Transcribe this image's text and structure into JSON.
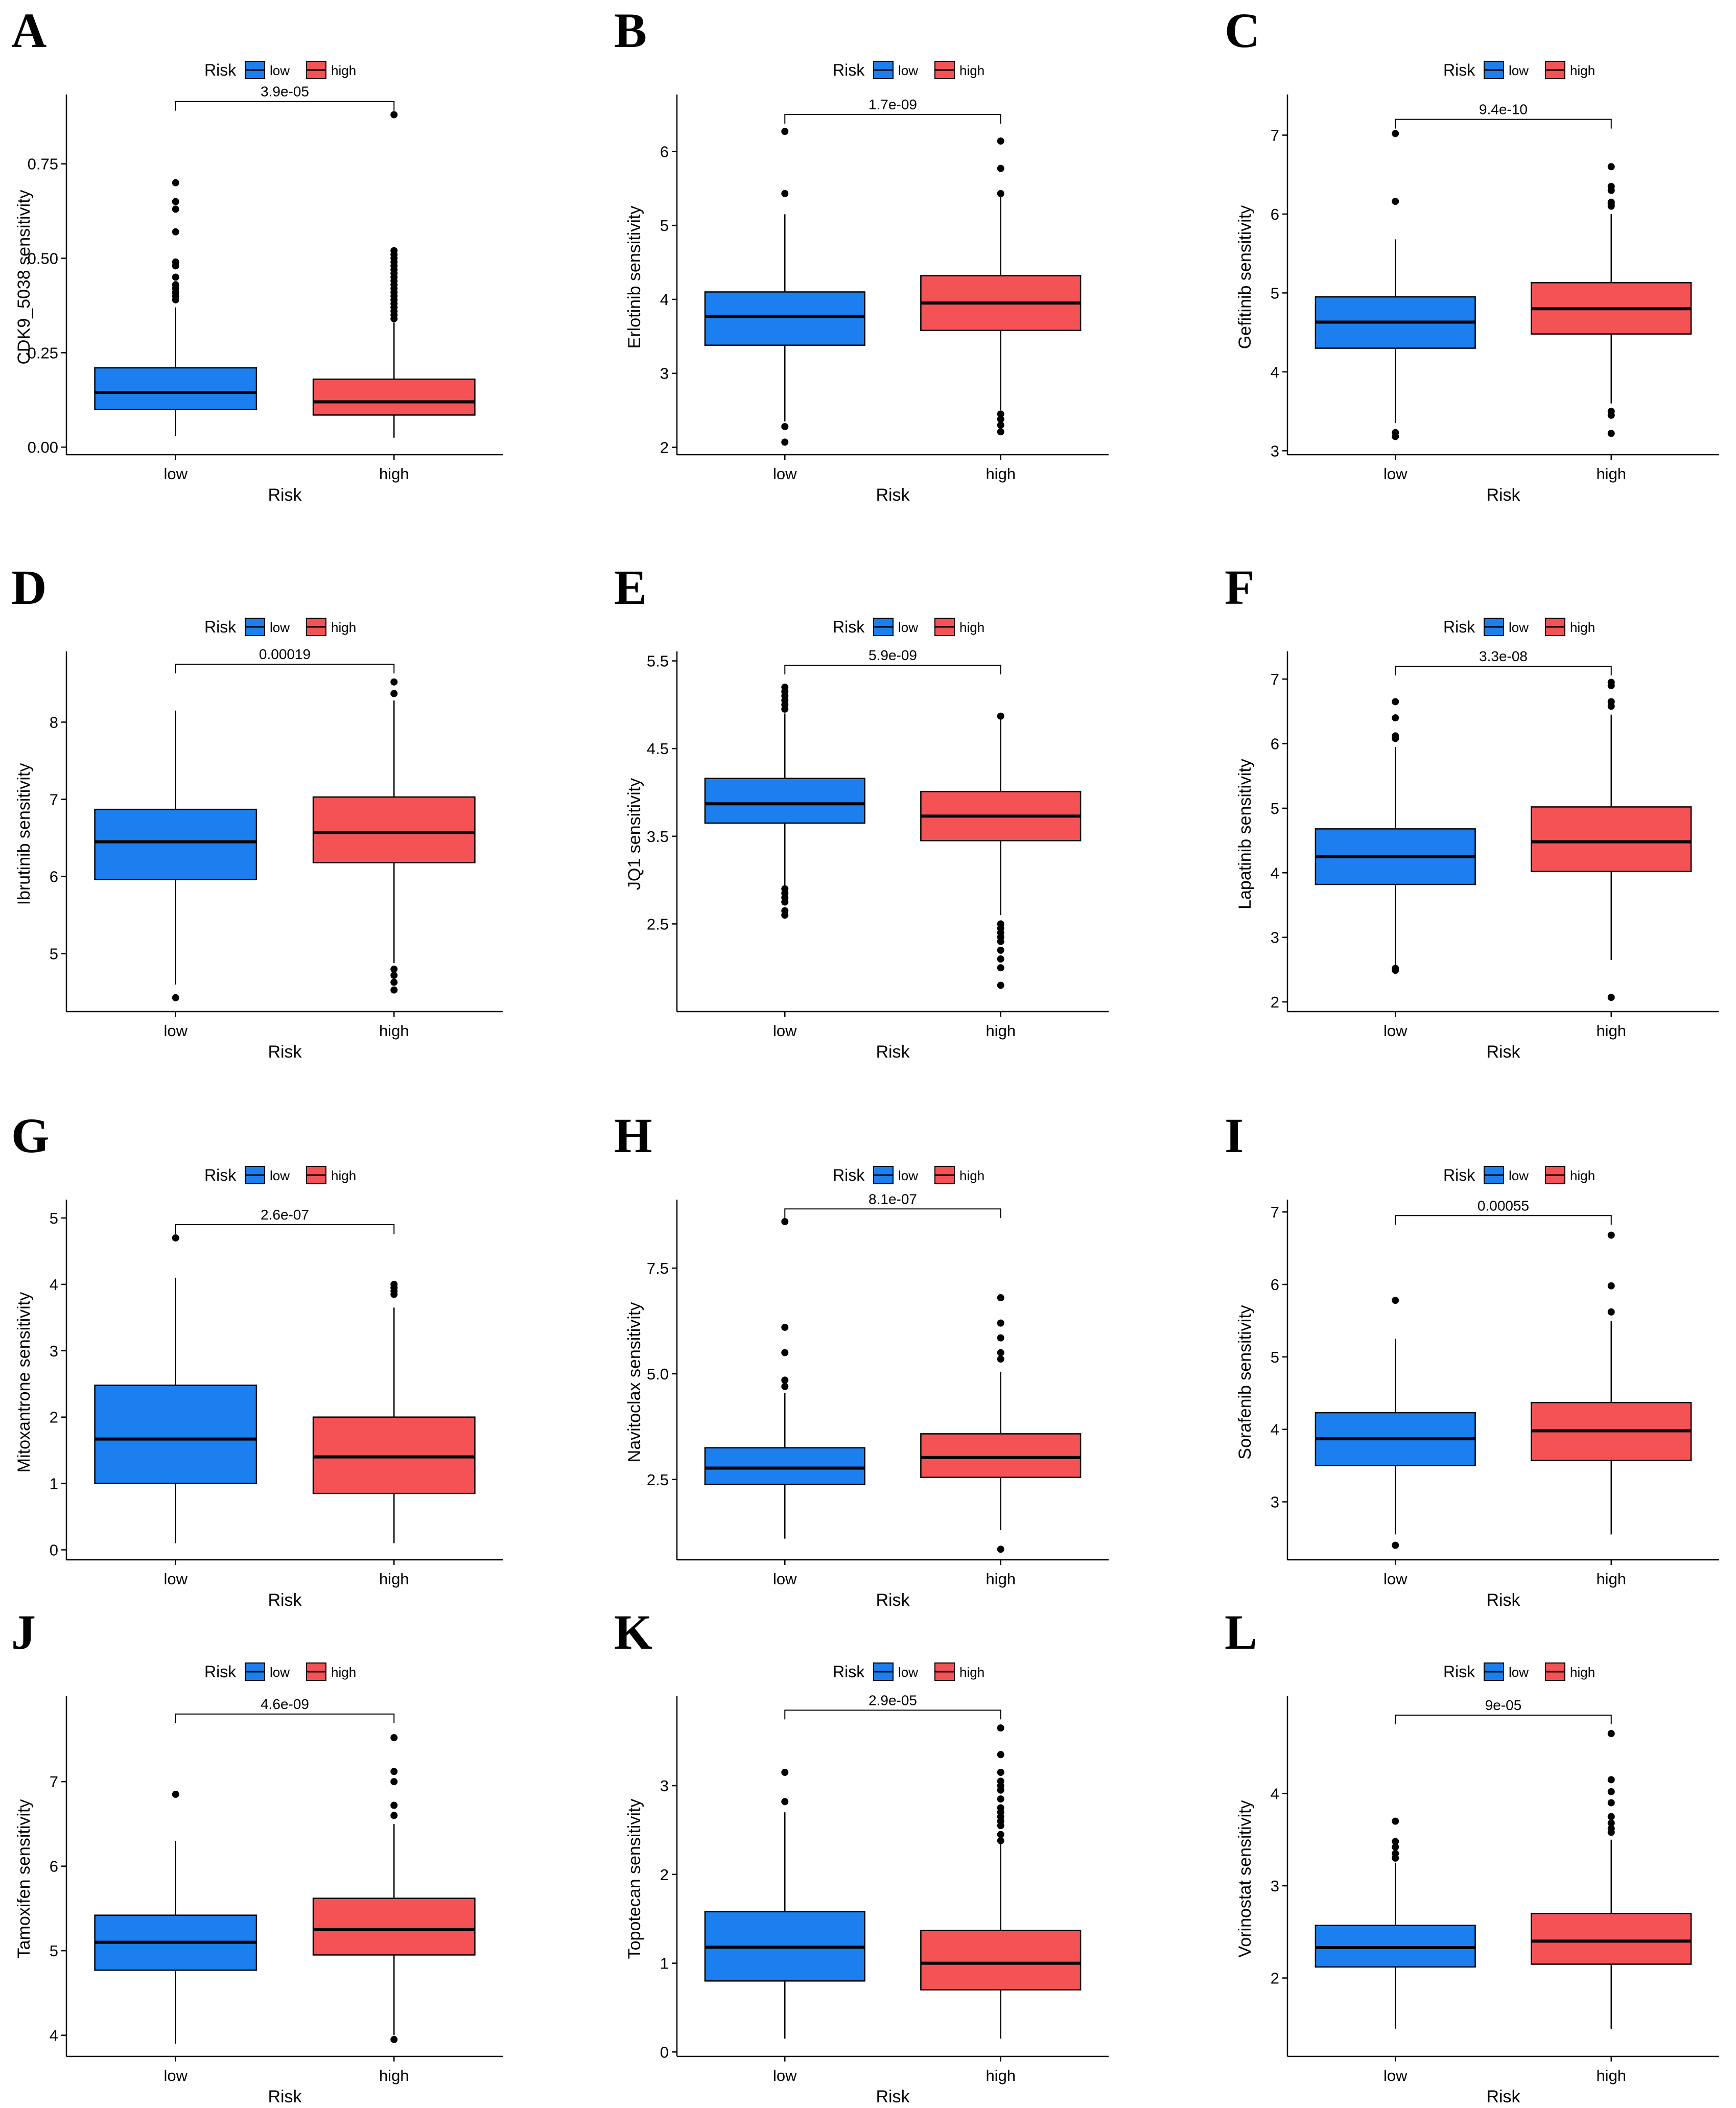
{
  "colors": {
    "low": "#1b7ff0",
    "high": "#f55256",
    "line": "#000000",
    "background": "#ffffff"
  },
  "chart_data": [
    {
      "panel": "A",
      "type": "box",
      "title": "",
      "ylabel": "CDK9_5038 sensitivity",
      "xlabel": "Risk",
      "categories": [
        "low",
        "high"
      ],
      "legend_title": "Risk",
      "legend_labels": [
        "low",
        "high"
      ],
      "legend_position": "top",
      "ylim": [
        -0.02,
        0.92
      ],
      "yticks": [
        0.0,
        0.25,
        0.5,
        0.75
      ],
      "ytick_labels": [
        "0.00",
        "0.25",
        "0.50",
        "0.75"
      ],
      "pvalue": "3.9e-05",
      "bracket_y": 0.915,
      "boxes": [
        {
          "group": "low",
          "q1": 0.1,
          "median": 0.145,
          "q3": 0.21,
          "whisker_low": 0.03,
          "whisker_high": 0.37,
          "outliers": [
            0.39,
            0.4,
            0.41,
            0.42,
            0.43,
            0.45,
            0.48,
            0.49,
            0.57,
            0.63,
            0.65,
            0.7
          ]
        },
        {
          "group": "high",
          "q1": 0.085,
          "median": 0.12,
          "q3": 0.18,
          "whisker_low": 0.025,
          "whisker_high": 0.33,
          "outliers": [
            0.34,
            0.35,
            0.36,
            0.37,
            0.38,
            0.39,
            0.4,
            0.41,
            0.42,
            0.43,
            0.44,
            0.45,
            0.46,
            0.47,
            0.48,
            0.49,
            0.5,
            0.51,
            0.52,
            0.88
          ]
        }
      ]
    },
    {
      "panel": "B",
      "type": "box",
      "title": "",
      "ylabel": "Erlotinib sensitivity",
      "xlabel": "Risk",
      "categories": [
        "low",
        "high"
      ],
      "legend_title": "Risk",
      "legend_labels": [
        "low",
        "high"
      ],
      "legend_position": "top",
      "ylim": [
        1.9,
        6.7
      ],
      "yticks": [
        2,
        3,
        4,
        5,
        6
      ],
      "ytick_labels": [
        "2",
        "3",
        "4",
        "5",
        "6"
      ],
      "pvalue": "1.7e-09",
      "bracket_y": 6.5,
      "boxes": [
        {
          "group": "low",
          "q1": 3.38,
          "median": 3.77,
          "q3": 4.1,
          "whisker_low": 2.35,
          "whisker_high": 5.15,
          "outliers": [
            2.07,
            2.28,
            5.43,
            6.27
          ]
        },
        {
          "group": "high",
          "q1": 3.58,
          "median": 3.95,
          "q3": 4.32,
          "whisker_low": 2.5,
          "whisker_high": 5.4,
          "outliers": [
            2.21,
            2.3,
            2.38,
            2.45,
            5.43,
            5.77,
            6.14
          ]
        }
      ]
    },
    {
      "panel": "C",
      "type": "box",
      "title": "",
      "ylabel": "Gefitinib sensitivity",
      "xlabel": "Risk",
      "categories": [
        "low",
        "high"
      ],
      "legend_title": "Risk",
      "legend_labels": [
        "low",
        "high"
      ],
      "legend_position": "top",
      "ylim": [
        2.95,
        7.45
      ],
      "yticks": [
        3,
        4,
        5,
        6,
        7
      ],
      "ytick_labels": [
        "3",
        "4",
        "5",
        "6",
        "7"
      ],
      "pvalue": "9.4e-10",
      "bracket_y": 7.2,
      "boxes": [
        {
          "group": "low",
          "q1": 4.3,
          "median": 4.63,
          "q3": 4.95,
          "whisker_low": 3.35,
          "whisker_high": 5.68,
          "outliers": [
            3.18,
            3.23,
            6.16,
            7.02
          ]
        },
        {
          "group": "high",
          "q1": 4.48,
          "median": 4.8,
          "q3": 5.13,
          "whisker_low": 3.6,
          "whisker_high": 6.0,
          "outliers": [
            3.22,
            3.45,
            3.5,
            6.1,
            6.13,
            6.15,
            6.3,
            6.35,
            6.6
          ]
        }
      ]
    },
    {
      "panel": "D",
      "type": "box",
      "title": "",
      "ylabel": "Ibrutinib sensitivity",
      "xlabel": "Risk",
      "categories": [
        "low",
        "high"
      ],
      "legend_title": "Risk",
      "legend_labels": [
        "low",
        "high"
      ],
      "legend_position": "top",
      "ylim": [
        4.25,
        8.85
      ],
      "yticks": [
        5,
        6,
        7,
        8
      ],
      "ytick_labels": [
        "5",
        "6",
        "7",
        "8"
      ],
      "pvalue": "0.00019",
      "bracket_y": 8.75,
      "boxes": [
        {
          "group": "low",
          "q1": 5.96,
          "median": 6.45,
          "q3": 6.87,
          "whisker_low": 4.6,
          "whisker_high": 8.15,
          "outliers": [
            4.43
          ]
        },
        {
          "group": "high",
          "q1": 6.18,
          "median": 6.57,
          "q3": 7.03,
          "whisker_low": 4.88,
          "whisker_high": 8.28,
          "outliers": [
            4.53,
            4.63,
            4.72,
            4.8,
            8.37,
            8.52
          ]
        }
      ]
    },
    {
      "panel": "E",
      "type": "box",
      "title": "",
      "ylabel": "JQ1 sensitivity",
      "xlabel": "Risk",
      "categories": [
        "low",
        "high"
      ],
      "legend_title": "Risk",
      "legend_labels": [
        "low",
        "high"
      ],
      "legend_position": "top",
      "ylim": [
        1.5,
        5.55
      ],
      "yticks": [
        2.5,
        3.5,
        4.5,
        5.5
      ],
      "ytick_labels": [
        "2.5",
        "3.5",
        "4.5",
        "5.5"
      ],
      "pvalue": "5.9e-09",
      "bracket_y": 5.45,
      "boxes": [
        {
          "group": "low",
          "q1": 3.65,
          "median": 3.87,
          "q3": 4.16,
          "whisker_low": 2.93,
          "whisker_high": 4.9,
          "outliers": [
            2.6,
            2.65,
            2.75,
            2.8,
            2.85,
            2.9,
            4.95,
            5.0,
            5.05,
            5.1,
            5.15,
            5.2
          ]
        },
        {
          "group": "high",
          "q1": 3.45,
          "median": 3.73,
          "q3": 4.01,
          "whisker_low": 2.6,
          "whisker_high": 4.85,
          "outliers": [
            1.8,
            2.0,
            2.1,
            2.2,
            2.3,
            2.35,
            2.4,
            2.45,
            2.5,
            4.87
          ]
        }
      ]
    },
    {
      "panel": "F",
      "type": "box",
      "title": "",
      "ylabel": "Lapatinib sensitivity",
      "xlabel": "Risk",
      "categories": [
        "low",
        "high"
      ],
      "legend_title": "Risk",
      "legend_labels": [
        "low",
        "high"
      ],
      "legend_position": "top",
      "ylim": [
        1.85,
        7.35
      ],
      "yticks": [
        2,
        3,
        4,
        5,
        6,
        7
      ],
      "ytick_labels": [
        "2",
        "3",
        "4",
        "5",
        "6",
        "7"
      ],
      "pvalue": "3.3e-08",
      "bracket_y": 7.2,
      "boxes": [
        {
          "group": "low",
          "q1": 3.82,
          "median": 4.25,
          "q3": 4.68,
          "whisker_low": 2.55,
          "whisker_high": 5.95,
          "outliers": [
            2.49,
            2.52,
            6.08,
            6.12,
            6.4,
            6.65
          ]
        },
        {
          "group": "high",
          "q1": 4.02,
          "median": 4.48,
          "q3": 5.02,
          "whisker_low": 2.65,
          "whisker_high": 6.45,
          "outliers": [
            2.07,
            6.58,
            6.65,
            6.9,
            6.95
          ]
        }
      ]
    },
    {
      "panel": "G",
      "type": "box",
      "title": "",
      "ylabel": "Mitoxantrone sensitivity",
      "xlabel": "Risk",
      "categories": [
        "low",
        "high"
      ],
      "legend_title": "Risk",
      "legend_labels": [
        "low",
        "high"
      ],
      "legend_position": "top",
      "ylim": [
        -0.15,
        5.2
      ],
      "yticks": [
        0,
        1,
        2,
        3,
        4,
        5
      ],
      "ytick_labels": [
        "0",
        "1",
        "2",
        "3",
        "4",
        "5"
      ],
      "pvalue": "2.6e-07",
      "bracket_y": 4.9,
      "boxes": [
        {
          "group": "low",
          "q1": 1.0,
          "median": 1.67,
          "q3": 2.48,
          "whisker_low": 0.1,
          "whisker_high": 4.1,
          "outliers": [
            4.7
          ]
        },
        {
          "group": "high",
          "q1": 0.85,
          "median": 1.4,
          "q3": 2.0,
          "whisker_low": 0.1,
          "whisker_high": 3.65,
          "outliers": [
            3.85,
            3.9,
            3.95,
            4.0
          ]
        }
      ]
    },
    {
      "panel": "H",
      "type": "box",
      "title": "",
      "ylabel": "Navitoclax sensitivity",
      "xlabel": "Risk",
      "categories": [
        "low",
        "high"
      ],
      "legend_title": "Risk",
      "legend_labels": [
        "low",
        "high"
      ],
      "legend_position": "top",
      "ylim": [
        0.6,
        9.0
      ],
      "yticks": [
        2.5,
        5.0,
        7.5
      ],
      "ytick_labels": [
        "2.5",
        "5.0",
        "7.5"
      ],
      "pvalue": "8.1e-07",
      "bracket_y": 8.9,
      "boxes": [
        {
          "group": "low",
          "q1": 2.38,
          "median": 2.77,
          "q3": 3.25,
          "whisker_low": 1.1,
          "whisker_high": 4.55,
          "outliers": [
            4.7,
            4.85,
            5.5,
            6.1,
            8.6
          ]
        },
        {
          "group": "high",
          "q1": 2.55,
          "median": 3.02,
          "q3": 3.58,
          "whisker_low": 1.3,
          "whisker_high": 5.05,
          "outliers": [
            0.85,
            5.35,
            5.5,
            5.85,
            6.2,
            6.8
          ]
        }
      ]
    },
    {
      "panel": "I",
      "type": "box",
      "title": "",
      "ylabel": "Sorafenib sensitivity",
      "xlabel": "Risk",
      "categories": [
        "low",
        "high"
      ],
      "legend_title": "Risk",
      "legend_labels": [
        "low",
        "high"
      ],
      "legend_position": "top",
      "ylim": [
        2.2,
        7.1
      ],
      "yticks": [
        3,
        4,
        5,
        6,
        7
      ],
      "ytick_labels": [
        "3",
        "4",
        "5",
        "6",
        "7"
      ],
      "pvalue": "0.00055",
      "bracket_y": 6.95,
      "boxes": [
        {
          "group": "low",
          "q1": 3.5,
          "median": 3.87,
          "q3": 4.23,
          "whisker_low": 2.55,
          "whisker_high": 5.25,
          "outliers": [
            2.4,
            5.78
          ]
        },
        {
          "group": "high",
          "q1": 3.57,
          "median": 3.98,
          "q3": 4.37,
          "whisker_low": 2.55,
          "whisker_high": 5.5,
          "outliers": [
            5.62,
            5.98,
            6.68
          ]
        }
      ]
    },
    {
      "panel": "J",
      "type": "box",
      "title": "",
      "ylabel": "Tamoxifen sensitivity",
      "xlabel": "Risk",
      "categories": [
        "low",
        "high"
      ],
      "legend_title": "Risk",
      "legend_labels": [
        "low",
        "high"
      ],
      "legend_position": "top",
      "ylim": [
        3.75,
        7.95
      ],
      "yticks": [
        4,
        5,
        6,
        7
      ],
      "ytick_labels": [
        "4",
        "5",
        "6",
        "7"
      ],
      "pvalue": "4.6e-09",
      "bracket_y": 7.8,
      "boxes": [
        {
          "group": "low",
          "q1": 4.77,
          "median": 5.1,
          "q3": 5.42,
          "whisker_low": 3.9,
          "whisker_high": 6.3,
          "outliers": [
            6.85
          ]
        },
        {
          "group": "high",
          "q1": 4.95,
          "median": 5.25,
          "q3": 5.62,
          "whisker_low": 4.0,
          "whisker_high": 6.5,
          "outliers": [
            3.95,
            6.6,
            6.72,
            7.0,
            7.12,
            7.52
          ]
        }
      ]
    },
    {
      "panel": "K",
      "type": "box",
      "title": "",
      "ylabel": "Topotecan sensitivity",
      "xlabel": "Risk",
      "categories": [
        "low",
        "high"
      ],
      "legend_title": "Risk",
      "legend_labels": [
        "low",
        "high"
      ],
      "legend_position": "top",
      "ylim": [
        -0.05,
        3.95
      ],
      "yticks": [
        0,
        1,
        2,
        3
      ],
      "ytick_labels": [
        "0",
        "1",
        "2",
        "3"
      ],
      "pvalue": "2.9e-05",
      "bracket_y": 3.85,
      "boxes": [
        {
          "group": "low",
          "q1": 0.8,
          "median": 1.18,
          "q3": 1.58,
          "whisker_low": 0.15,
          "whisker_high": 2.7,
          "outliers": [
            2.82,
            3.15
          ]
        },
        {
          "group": "high",
          "q1": 0.7,
          "median": 1.0,
          "q3": 1.37,
          "whisker_low": 0.15,
          "whisker_high": 2.35,
          "outliers": [
            2.38,
            2.45,
            2.55,
            2.6,
            2.65,
            2.7,
            2.75,
            2.85,
            2.95,
            3.0,
            3.05,
            3.15,
            3.35,
            3.65
          ]
        }
      ]
    },
    {
      "panel": "L",
      "type": "box",
      "title": "",
      "ylabel": "Vorinostat sensitivity",
      "xlabel": "Risk",
      "categories": [
        "low",
        "high"
      ],
      "legend_title": "Risk",
      "legend_labels": [
        "low",
        "high"
      ],
      "legend_position": "top",
      "ylim": [
        1.15,
        5.0
      ],
      "yticks": [
        2,
        3,
        4
      ],
      "ytick_labels": [
        "2",
        "3",
        "4"
      ],
      "pvalue": "9e-05",
      "bracket_y": 4.85,
      "boxes": [
        {
          "group": "low",
          "q1": 2.12,
          "median": 2.33,
          "q3": 2.57,
          "whisker_low": 1.45,
          "whisker_high": 3.25,
          "outliers": [
            3.3,
            3.35,
            3.42,
            3.48,
            3.7
          ]
        },
        {
          "group": "high",
          "q1": 2.15,
          "median": 2.4,
          "q3": 2.7,
          "whisker_low": 1.45,
          "whisker_high": 3.5,
          "outliers": [
            3.58,
            3.62,
            3.68,
            3.75,
            3.9,
            4.02,
            4.15,
            4.65
          ]
        }
      ]
    }
  ]
}
